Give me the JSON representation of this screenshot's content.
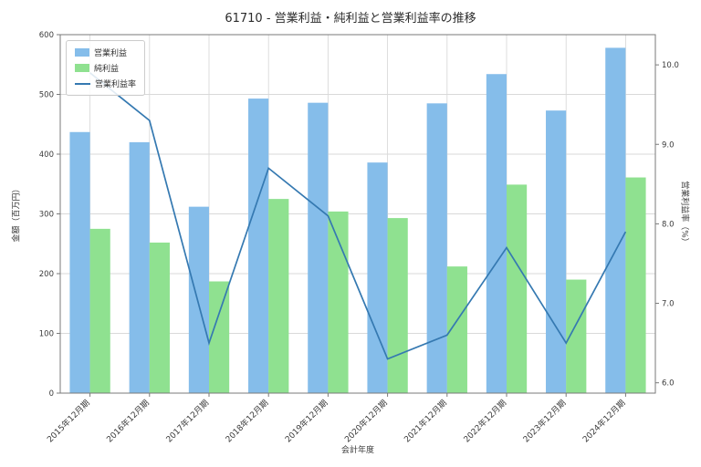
{
  "title": "61710 - 営業利益・純利益と営業利益率の推移",
  "axes": {
    "x_label": "会計年度",
    "y_left_label": "金額（百万円）",
    "y_right_label": "営業利益率（%）"
  },
  "colors": {
    "grid": "#d9d9d9",
    "spine": "#7a7a7a",
    "text": "#3a3a3a",
    "background": "#ffffff",
    "bar_operating_profit": "#85bdea",
    "bar_net_profit": "#8fe190",
    "line_margin": "#3579b1"
  },
  "legend": {
    "items": [
      {
        "label": "営業利益",
        "type": "bar"
      },
      {
        "label": "純利益",
        "type": "bar"
      },
      {
        "label": "営業利益率",
        "type": "line"
      }
    ],
    "position": "upper-left"
  },
  "chart_data": {
    "type": "bar",
    "title": "61710 - 営業利益・純利益と営業利益率の推移",
    "xlabel": "会計年度",
    "ylabel_left": "金額（百万円）",
    "ylabel_right": "営業利益率（%）",
    "grid": true,
    "legend_position": "upper-left",
    "categories": [
      "2015年12月期",
      "2016年12月期",
      "2017年12月期",
      "2018年12月期",
      "2019年12月期",
      "2020年12月期",
      "2021年12月期",
      "2022年12月期",
      "2023年12月期",
      "2024年12月期"
    ],
    "series": [
      {
        "name": "営業利益",
        "type": "bar",
        "axis": "left",
        "color": "#85bdea",
        "values": [
          437,
          420,
          312,
          493,
          486,
          386,
          485,
          534,
          473,
          578
        ]
      },
      {
        "name": "純利益",
        "type": "bar",
        "axis": "left",
        "color": "#8fe190",
        "values": [
          275,
          252,
          187,
          325,
          304,
          293,
          212,
          349,
          190,
          361
        ]
      },
      {
        "name": "営業利益率",
        "type": "line",
        "axis": "right",
        "color": "#3579b1",
        "values": [
          9.9,
          9.3,
          6.5,
          8.7,
          8.1,
          6.3,
          6.6,
          7.7,
          6.5,
          7.9
        ]
      }
    ],
    "y_left_axis": {
      "min": 0,
      "max": 600,
      "ticks": [
        0,
        100,
        200,
        300,
        400,
        500,
        600
      ]
    },
    "y_right_axis": {
      "min": 5.87,
      "max": 10.38,
      "ticks": [
        6.0,
        7.0,
        8.0,
        9.0,
        10.0
      ]
    }
  }
}
